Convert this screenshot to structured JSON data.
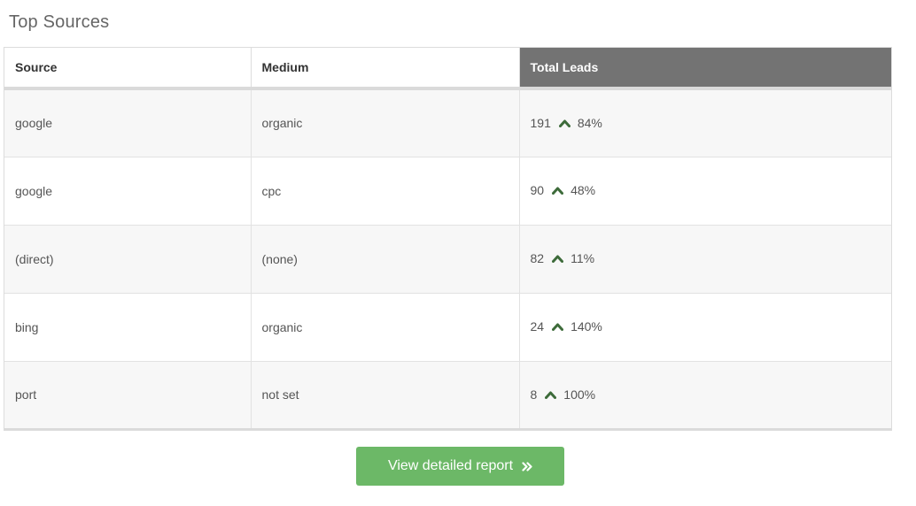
{
  "title": "Top Sources",
  "table": {
    "headers": [
      "Source",
      "Medium",
      "Total Leads"
    ],
    "rows": [
      {
        "source": "google",
        "medium": "organic",
        "leads": "191",
        "change": "84%",
        "trend": "up"
      },
      {
        "source": "google",
        "medium": "cpc",
        "leads": "90",
        "change": "48%",
        "trend": "up"
      },
      {
        "source": "(direct)",
        "medium": "(none)",
        "leads": "82",
        "change": "11%",
        "trend": "up"
      },
      {
        "source": "bing",
        "medium": "organic",
        "leads": "24",
        "change": "140%",
        "trend": "up"
      },
      {
        "source": "port",
        "medium": "not set",
        "leads": "8",
        "change": "100%",
        "trend": "up"
      }
    ]
  },
  "button": {
    "label": "View detailed report",
    "icon": "double-chevron-right-icon"
  },
  "colors": {
    "header_dark": "#737373",
    "trend_up": "#3d6b3a",
    "button": "#6cb867"
  }
}
